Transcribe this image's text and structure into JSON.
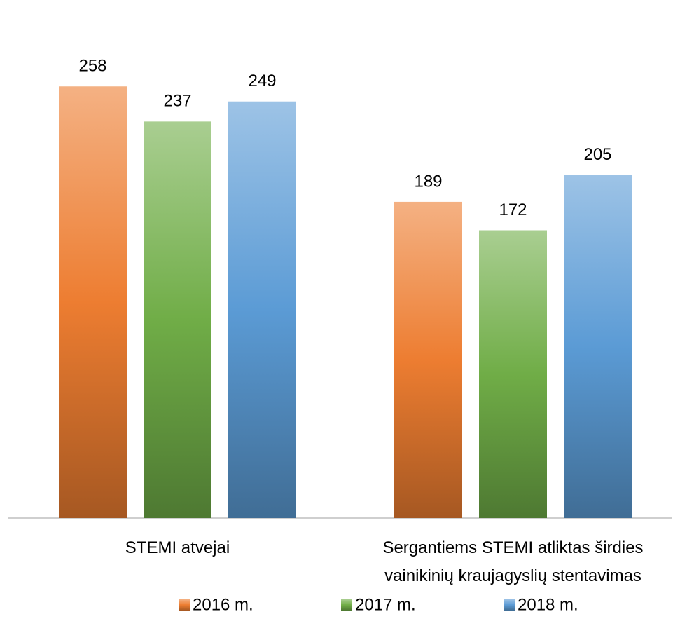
{
  "chart_data": {
    "type": "bar",
    "categories": [
      "STEMI atvejai",
      "Sergantiems STEMI atliktas širdies\nvainikinių kraujagyslių stentavimas"
    ],
    "series": [
      {
        "name": "2016 m.",
        "color": "#ed7d31",
        "values": [
          258,
          189
        ]
      },
      {
        "name": "2017 m.",
        "color": "#70ad47",
        "values": [
          237,
          172
        ]
      },
      {
        "name": "2018 m.",
        "color": "#5b9bd5",
        "values": [
          249,
          205
        ]
      }
    ],
    "ylim": [
      0,
      300
    ],
    "legend": "bottom"
  }
}
